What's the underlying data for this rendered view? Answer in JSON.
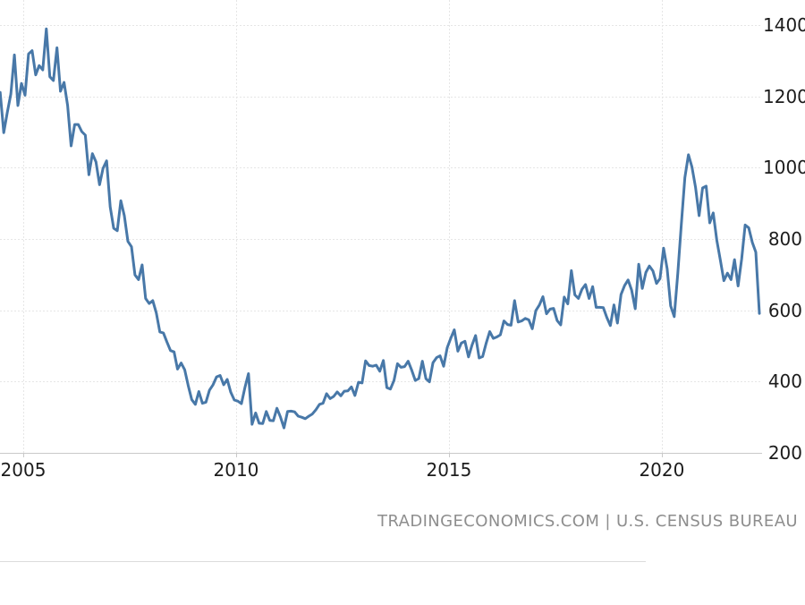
{
  "footer": {
    "attribution": "TRADINGECONOMICS.COM | U.S. CENSUS BUREAU"
  },
  "colors": {
    "line": "#4878a8",
    "grid": "#e6e6e6",
    "axis": "#c9c9c9",
    "tick_text": "#1c1c1c",
    "attribution_text": "#8e8e8e",
    "background": "#ffffff"
  },
  "chart_data": {
    "type": "line",
    "frequency": "monthly",
    "start": "2004-06",
    "end": "2022-04",
    "x_ticks": [
      2005,
      2010,
      2015,
      2020
    ],
    "x_tick_labels": [
      "2005",
      "2010",
      "2015",
      "2020"
    ],
    "y_ticks": [
      200,
      400,
      600,
      800,
      1000,
      1200,
      1400
    ],
    "y_tick_labels": [
      "200",
      "400",
      "600",
      "800",
      "1000",
      "1200",
      "1400"
    ],
    "xlim": [
      2004.454,
      2022.355
    ],
    "ylim": [
      200,
      1470
    ],
    "grid": true,
    "legend": false,
    "values": [
      1211,
      1098,
      1154,
      1206,
      1316,
      1174,
      1236,
      1203,
      1319,
      1328,
      1260,
      1286,
      1274,
      1389,
      1255,
      1244,
      1336,
      1214,
      1239,
      1174,
      1061,
      1121,
      1121,
      1101,
      1091,
      980,
      1039,
      1016,
      952,
      998,
      1019,
      890,
      830,
      823,
      907,
      865,
      793,
      778,
      699,
      686,
      727,
      633,
      619,
      627,
      593,
      539,
      536,
      511,
      487,
      483,
      435,
      452,
      433,
      389,
      349,
      336,
      372,
      339,
      342,
      376,
      391,
      413,
      417,
      391,
      406,
      370,
      348,
      345,
      338,
      384,
      422,
      280,
      312,
      283,
      282,
      316,
      291,
      290,
      325,
      301,
      270,
      316,
      317,
      315,
      303,
      300,
      296,
      303,
      309,
      321,
      336,
      339,
      366,
      352,
      358,
      371,
      360,
      373,
      374,
      385,
      361,
      398,
      396,
      458,
      445,
      443,
      446,
      429,
      459,
      383,
      379,
      403,
      450,
      440,
      442,
      457,
      432,
      403,
      408,
      457,
      408,
      399,
      453,
      467,
      472,
      443,
      495,
      521,
      545,
      485,
      508,
      513,
      469,
      502,
      529,
      466,
      470,
      508,
      540,
      521,
      525,
      531,
      570,
      560,
      558,
      627,
      567,
      570,
      577,
      573,
      548,
      599,
      615,
      638,
      590,
      603,
      605,
      571,
      559,
      637,
      618,
      711,
      643,
      633,
      659,
      672,
      633,
      666,
      608,
      608,
      607,
      580,
      557,
      615,
      564,
      644,
      669,
      685,
      656,
      604,
      729,
      661,
      706,
      724,
      710,
      675,
      689,
      774,
      716,
      612,
      582,
      704,
      840,
      972,
      1036,
      1002,
      945,
      865,
      943,
      948,
      845,
      873,
      796,
      740,
      683,
      704,
      686,
      742,
      668,
      744,
      839,
      831,
      790,
      763,
      591
    ]
  }
}
